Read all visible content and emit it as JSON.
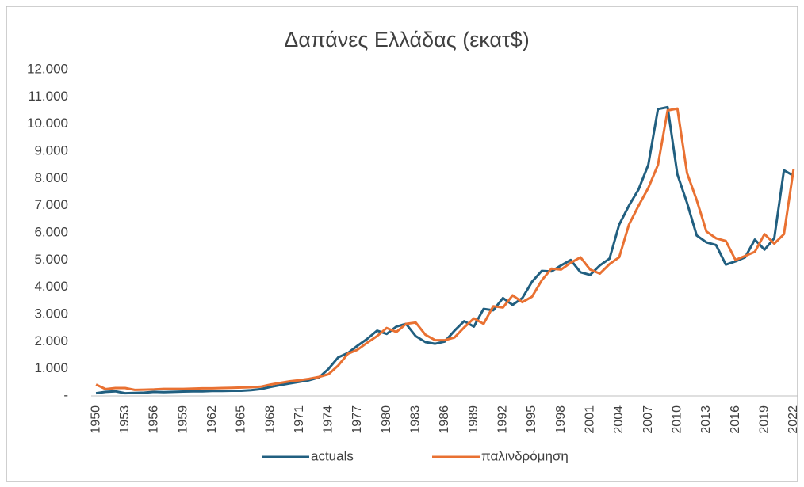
{
  "chart_data": {
    "type": "line",
    "title": "Δαπάνες Ελλάδας (εκατ$)",
    "categories": [
      "1950",
      null,
      null,
      "1953",
      null,
      null,
      "1956",
      null,
      null,
      "1959",
      null,
      null,
      "1962",
      null,
      null,
      "1965",
      null,
      null,
      "1968",
      null,
      null,
      "1971",
      null,
      null,
      "1974",
      null,
      null,
      "1977",
      null,
      null,
      "1980",
      null,
      null,
      "1983",
      null,
      null,
      "1986",
      null,
      null,
      "1989",
      null,
      null,
      "1992",
      null,
      null,
      "1995",
      null,
      null,
      "1998",
      null,
      null,
      "2001",
      null,
      null,
      "2004",
      null,
      null,
      "2007",
      null,
      null,
      "2010",
      null,
      null,
      "2013",
      null,
      null,
      "2016",
      null,
      null,
      "2019",
      null,
      null,
      "2022"
    ],
    "series": [
      {
        "name": "actuals",
        "color": "#215f80",
        "values": [
          100,
          150,
          170,
          100,
          110,
          120,
          150,
          140,
          150,
          160,
          170,
          170,
          180,
          180,
          190,
          190,
          210,
          250,
          330,
          400,
          460,
          520,
          580,
          680,
          1000,
          1420,
          1580,
          1850,
          2100,
          2400,
          2280,
          2550,
          2650,
          2200,
          1980,
          1920,
          2000,
          2400,
          2750,
          2550,
          3200,
          3150,
          3600,
          3350,
          3600,
          4200,
          4600,
          4580,
          4800,
          5000,
          4550,
          4450,
          4800,
          5050,
          6300,
          7000,
          7600,
          8500,
          10550,
          10620,
          8150,
          7100,
          5900,
          5650,
          5550,
          4830,
          4950,
          5100,
          5750,
          5380,
          5800,
          8300,
          8100
        ]
      },
      {
        "name": "παλινδρόμηση",
        "color": "#e97132",
        "values": [
          420,
          250,
          290,
          290,
          220,
          230,
          240,
          260,
          260,
          260,
          270,
          280,
          280,
          290,
          300,
          310,
          320,
          340,
          420,
          480,
          540,
          580,
          630,
          700,
          800,
          1120,
          1550,
          1700,
          1960,
          2200,
          2500,
          2350,
          2650,
          2700,
          2250,
          2050,
          2050,
          2150,
          2520,
          2850,
          2650,
          3300,
          3250,
          3700,
          3450,
          3650,
          4250,
          4680,
          4650,
          4900,
          5100,
          4650,
          4500,
          4850,
          5100,
          6300,
          7000,
          7650,
          8500,
          10500,
          10570,
          8200,
          7200,
          6050,
          5800,
          5700,
          5000,
          5150,
          5300,
          5950,
          5600,
          5950,
          8350
        ]
      }
    ],
    "ylim": [
      0,
      12000
    ],
    "yticks": [
      {
        "value": 0,
        "label": "-"
      },
      {
        "value": 1000,
        "label": "1.000"
      },
      {
        "value": 2000,
        "label": "2.000"
      },
      {
        "value": 3000,
        "label": "3.000"
      },
      {
        "value": 4000,
        "label": "4.000"
      },
      {
        "value": 5000,
        "label": "5.000"
      },
      {
        "value": 6000,
        "label": "6.000"
      },
      {
        "value": 7000,
        "label": "7.000"
      },
      {
        "value": 8000,
        "label": "8.000"
      },
      {
        "value": 9000,
        "label": "9.000"
      },
      {
        "value": 10000,
        "label": "10.000"
      },
      {
        "value": 11000,
        "label": "11.000"
      },
      {
        "value": 12000,
        "label": "12.000"
      }
    ],
    "grid": false,
    "legend": "bottom"
  }
}
